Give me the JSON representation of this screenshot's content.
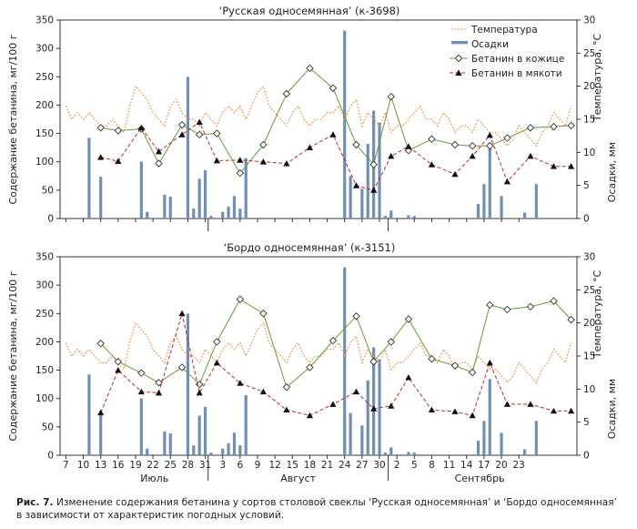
{
  "caption": {
    "label": "Рис. 7.",
    "text": "Изменение содержания бетанина у сортов столовой свеклы ‘Русская односемянная’ и ‘Бордо односемянная’ в зависимости от характеристик погодных условий."
  },
  "colors": {
    "temperature": "#f08a3c",
    "precipitation": "#6f8fb5",
    "betanin_skin": "#6a9a3a",
    "betanin_pulp": "#c0272d",
    "axis": "#231f20"
  },
  "shared": {
    "x_ticks": [
      "7",
      "10",
      "13",
      "16",
      "19",
      "22",
      "25",
      "28",
      "31",
      "3",
      "6",
      "9",
      "12",
      "15",
      "18",
      "21",
      "24",
      "27",
      "30",
      "2",
      "5",
      "8",
      "11",
      "14",
      "17",
      "20",
      "23"
    ],
    "month_labels": [
      "Июль",
      "Август",
      "Сентябрь"
    ],
    "legend": {
      "temperature": "Температура",
      "precipitation": "Осадки",
      "skin": "Бетанин в кожице",
      "pulp": "Бетанин в мякоти"
    },
    "ylabel_left": "Содержание бетанина, мг/100 г",
    "ylabel_right_1": "Температура, °С",
    "ylabel_right_2": "Осадки, мм",
    "left_ticks": [
      "0",
      "50",
      "100",
      "150",
      "200",
      "250",
      "300",
      "350"
    ],
    "right_ticks": [
      "0",
      "5",
      "10",
      "15",
      "20",
      "25",
      "30"
    ],
    "month_separator_days": [
      31.5,
      62.5
    ]
  },
  "chart_data": [
    {
      "type": "bar+line",
      "title": "‘Русская односемянная’ (к-3698)",
      "xlabel": "",
      "ylabel": "Содержание бетанина, мг/100 г",
      "ylim": [
        0,
        350
      ],
      "y2lim": [
        0,
        30
      ],
      "x_unit": "day index from 1 July",
      "series": [
        {
          "name": "Температура",
          "axis": "right",
          "x": [
            7,
            8,
            9,
            10,
            11,
            12,
            13,
            14,
            15,
            16,
            17,
            18,
            19,
            20,
            21,
            22,
            23,
            24,
            25,
            26,
            27,
            28,
            29,
            30,
            31,
            32,
            33,
            34,
            35,
            36,
            37,
            38,
            39,
            40,
            41,
            42,
            43,
            44,
            45,
            46,
            47,
            48,
            49,
            50,
            51,
            52,
            53,
            54,
            55,
            56,
            57,
            58,
            59,
            60,
            61,
            62,
            63,
            64,
            65,
            66,
            67,
            68,
            69,
            70,
            71,
            72,
            73,
            74,
            75,
            76,
            77,
            78,
            79,
            80,
            81,
            82,
            83,
            84,
            85,
            86,
            87,
            88,
            89,
            90,
            91,
            92,
            93,
            94
          ],
          "values": [
            17,
            15,
            16,
            15,
            16,
            15,
            14,
            14,
            15,
            14,
            13,
            17,
            20,
            19,
            18,
            16,
            15,
            14,
            17,
            18,
            16,
            15,
            15,
            14,
            16,
            15,
            14,
            16,
            17,
            16,
            17,
            15,
            17,
            19,
            20,
            17,
            16,
            15,
            14,
            16,
            17,
            15,
            14,
            15,
            15,
            16,
            16,
            17,
            15,
            17,
            18,
            14,
            16,
            15,
            14,
            16,
            13,
            14,
            14,
            15,
            16,
            17,
            15,
            15,
            14,
            16,
            15,
            13,
            14,
            14,
            13,
            15,
            14,
            13,
            13,
            12,
            11,
            12,
            14,
            13,
            12,
            11,
            13,
            14,
            16,
            15,
            14,
            17
          ]
        },
        {
          "name": "Осадки",
          "axis": "right",
          "x": [
            11,
            13,
            20,
            21,
            24,
            25,
            28,
            29,
            30,
            31,
            32,
            34,
            35,
            36,
            37,
            38,
            55,
            56,
            58,
            59,
            60,
            61,
            62,
            63,
            66,
            67,
            78,
            79,
            80,
            82,
            86,
            88
          ],
          "values": [
            12.2,
            6.3,
            8.6,
            1.0,
            3.6,
            3.3,
            21.4,
            1.5,
            6.0,
            7.3,
            0.4,
            1.0,
            1.8,
            3.4,
            1.5,
            9.1,
            28.4,
            6.4,
            4.5,
            11.3,
            16.3,
            14.5,
            0.4,
            1.2,
            0.5,
            0.4,
            2.2,
            5.2,
            11.5,
            3.4,
            0.9,
            5.2
          ]
        },
        {
          "name": "Бетанин в кожице",
          "axis": "left",
          "x": [
            13,
            16,
            20,
            23,
            27,
            30,
            33,
            37,
            41,
            45,
            49,
            53,
            57,
            60,
            63,
            66,
            70,
            74,
            77,
            80,
            83,
            87,
            91,
            94
          ],
          "values": [
            160,
            155,
            158,
            97,
            165,
            148,
            150,
            80,
            130,
            220,
            265,
            230,
            130,
            95,
            215,
            120,
            140,
            130,
            128,
            128,
            142,
            160,
            162,
            164
          ]
        },
        {
          "name": "Бетанин в мякоти",
          "axis": "left",
          "x": [
            13,
            16,
            20,
            23,
            27,
            30,
            33,
            37,
            41,
            45,
            49,
            53,
            57,
            60,
            63,
            66,
            70,
            74,
            77,
            80,
            83,
            87,
            91,
            94
          ],
          "values": [
            108,
            101,
            160,
            118,
            148,
            170,
            102,
            103,
            100,
            97,
            125,
            148,
            58,
            50,
            110,
            127,
            95,
            78,
            110,
            147,
            65,
            110,
            92,
            92
          ]
        }
      ]
    },
    {
      "type": "bar+line",
      "title": "‘Бордо односемянная’ (к-3151)",
      "xlabel": "",
      "ylabel": "Содержание бетанина, мг/100 г",
      "ylim": [
        0,
        350
      ],
      "y2lim": [
        0,
        30
      ],
      "x_unit": "day index from 1 July",
      "series": [
        {
          "name": "Температура",
          "axis": "right",
          "x": [
            7,
            8,
            9,
            10,
            11,
            12,
            13,
            14,
            15,
            16,
            17,
            18,
            19,
            20,
            21,
            22,
            23,
            24,
            25,
            26,
            27,
            28,
            29,
            30,
            31,
            32,
            33,
            34,
            35,
            36,
            37,
            38,
            39,
            40,
            41,
            42,
            43,
            44,
            45,
            46,
            47,
            48,
            49,
            50,
            51,
            52,
            53,
            54,
            55,
            56,
            57,
            58,
            59,
            60,
            61,
            62,
            63,
            64,
            65,
            66,
            67,
            68,
            69,
            70,
            71,
            72,
            73,
            74,
            75,
            76,
            77,
            78,
            79,
            80,
            81,
            82,
            83,
            84,
            85,
            86,
            87,
            88,
            89,
            90,
            91,
            92,
            93,
            94
          ],
          "values": [
            17,
            15,
            16,
            15,
            16,
            15,
            14,
            14,
            15,
            14,
            13,
            17,
            20,
            19,
            18,
            16,
            15,
            14,
            17,
            18,
            16,
            15,
            15,
            14,
            16,
            15,
            14,
            16,
            17,
            16,
            17,
            15,
            17,
            19,
            20,
            17,
            16,
            15,
            14,
            16,
            17,
            15,
            14,
            15,
            15,
            16,
            16,
            17,
            15,
            17,
            18,
            14,
            16,
            15,
            14,
            16,
            13,
            14,
            14,
            15,
            16,
            17,
            15,
            15,
            14,
            16,
            15,
            13,
            14,
            14,
            13,
            15,
            14,
            13,
            13,
            12,
            11,
            12,
            14,
            13,
            12,
            11,
            13,
            14,
            16,
            15,
            14,
            17
          ]
        },
        {
          "name": "Осадки",
          "axis": "right",
          "x": [
            11,
            13,
            20,
            21,
            24,
            25,
            28,
            29,
            30,
            31,
            32,
            34,
            35,
            36,
            37,
            38,
            55,
            56,
            58,
            59,
            60,
            61,
            62,
            63,
            66,
            67,
            78,
            79,
            80,
            82,
            86,
            88
          ],
          "values": [
            12.2,
            6.3,
            8.6,
            1.0,
            3.6,
            3.3,
            21.4,
            1.5,
            6.0,
            7.3,
            0.4,
            1.0,
            1.8,
            3.4,
            1.5,
            9.1,
            28.4,
            6.4,
            4.5,
            11.3,
            16.3,
            14.5,
            0.4,
            1.2,
            0.5,
            0.4,
            2.2,
            5.2,
            11.5,
            3.4,
            0.9,
            5.2
          ]
        },
        {
          "name": "Бетанин в кожице",
          "axis": "left",
          "x": [
            13,
            16,
            20,
            23,
            27,
            30,
            33,
            37,
            41,
            45,
            49,
            53,
            57,
            60,
            63,
            66,
            70,
            74,
            77,
            80,
            83,
            87,
            91,
            94
          ],
          "values": [
            197,
            165,
            145,
            128,
            155,
            125,
            200,
            275,
            250,
            120,
            155,
            202,
            245,
            165,
            200,
            240,
            170,
            158,
            146,
            265,
            257,
            262,
            272,
            239
          ]
        },
        {
          "name": "Бетанин в мякоти",
          "axis": "left",
          "x": [
            13,
            16,
            20,
            23,
            27,
            30,
            33,
            37,
            41,
            45,
            49,
            53,
            57,
            60,
            63,
            66,
            70,
            74,
            77,
            80,
            83,
            87,
            91,
            94
          ],
          "values": [
            75,
            150,
            112,
            110,
            250,
            110,
            163,
            127,
            112,
            80,
            70,
            90,
            112,
            82,
            87,
            137,
            80,
            77,
            70,
            163,
            90,
            90,
            78,
            78
          ]
        }
      ]
    }
  ]
}
